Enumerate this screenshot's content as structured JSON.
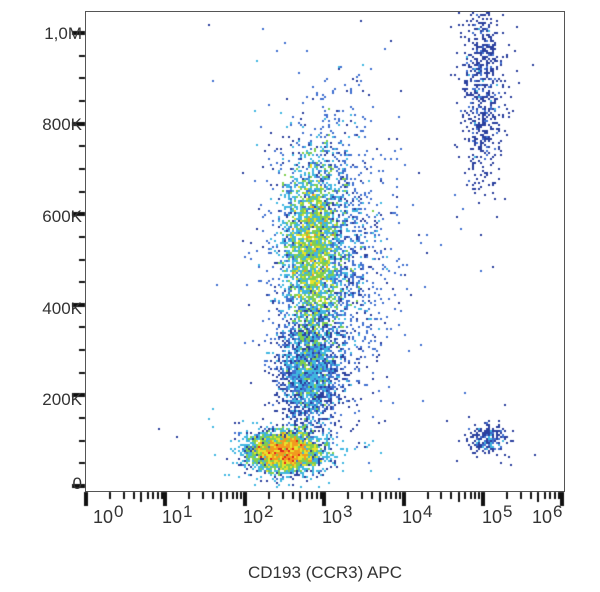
{
  "chart_data": {
    "type": "scatter",
    "subtype": "flow-cytometry-density-plot",
    "title": "",
    "xlabel": "CD193 (CCR3)  APC",
    "ylabel": "",
    "x_scale": "log",
    "y_scale": "linear",
    "xlim": [
      1,
      1000000
    ],
    "ylim": [
      0,
      1050000
    ],
    "x_ticks": [
      {
        "base": "10",
        "exp": "0",
        "value": 1
      },
      {
        "base": "10",
        "exp": "1",
        "value": 10
      },
      {
        "base": "10",
        "exp": "2",
        "value": 100
      },
      {
        "base": "10",
        "exp": "3",
        "value": 1000
      },
      {
        "base": "10",
        "exp": "4",
        "value": 10000
      },
      {
        "base": "10",
        "exp": "5",
        "value": 100000
      },
      {
        "base": "10",
        "exp": "6",
        "value": 1000000
      }
    ],
    "y_ticks": [
      {
        "label": "1,0M",
        "value": 1000000
      },
      {
        "label": "800K",
        "value": 800000
      },
      {
        "label": "600K",
        "value": 600000
      },
      {
        "label": "400K",
        "value": 400000
      },
      {
        "label": "200K",
        "value": 200000
      },
      {
        "label": "0",
        "value": 0
      }
    ],
    "grid": false,
    "legend": null,
    "colormap": [
      "#2a3f9e",
      "#3f6fd0",
      "#3fb6e0",
      "#7fcf4f",
      "#e8e22a",
      "#f29a1f",
      "#e3241c"
    ],
    "populations": [
      {
        "name": "CCR3-negative low-FSC cluster",
        "x_center_log10": 2.5,
        "x_sd_log10": 0.22,
        "y_center": 75000,
        "y_sd": 22000,
        "n": 9000,
        "peak_color": "#e3241c"
      },
      {
        "name": "CCR3-low main population",
        "x_center_log10": 2.85,
        "x_sd_log10": 0.17,
        "y_center": 520000,
        "y_sd": 95000,
        "n": 9000,
        "peak_color": "#e8e22a"
      },
      {
        "name": "intermediate bridge",
        "x_center_log10": 2.8,
        "x_sd_log10": 0.18,
        "y_center": 250000,
        "y_sd": 60000,
        "n": 2500,
        "peak_color": "#3fb6e0"
      },
      {
        "name": "broad halo",
        "x_center_log10": 3.05,
        "x_sd_log10": 0.35,
        "y_center": 500000,
        "y_sd": 160000,
        "n": 3500,
        "peak_color": "#2a3f9e"
      },
      {
        "name": "CCR3-high high-SSC population",
        "x_center_log10": 5.0,
        "x_sd_log10": 0.13,
        "y_center": 880000,
        "y_sd": 110000,
        "n": 700,
        "peak_color": "#2a3f9e"
      },
      {
        "name": "CCR3-high low-SSC cluster",
        "x_center_log10": 5.05,
        "x_sd_log10": 0.12,
        "y_center": 100000,
        "y_sd": 18000,
        "n": 220,
        "peak_color": "#2a3f9e"
      }
    ]
  }
}
